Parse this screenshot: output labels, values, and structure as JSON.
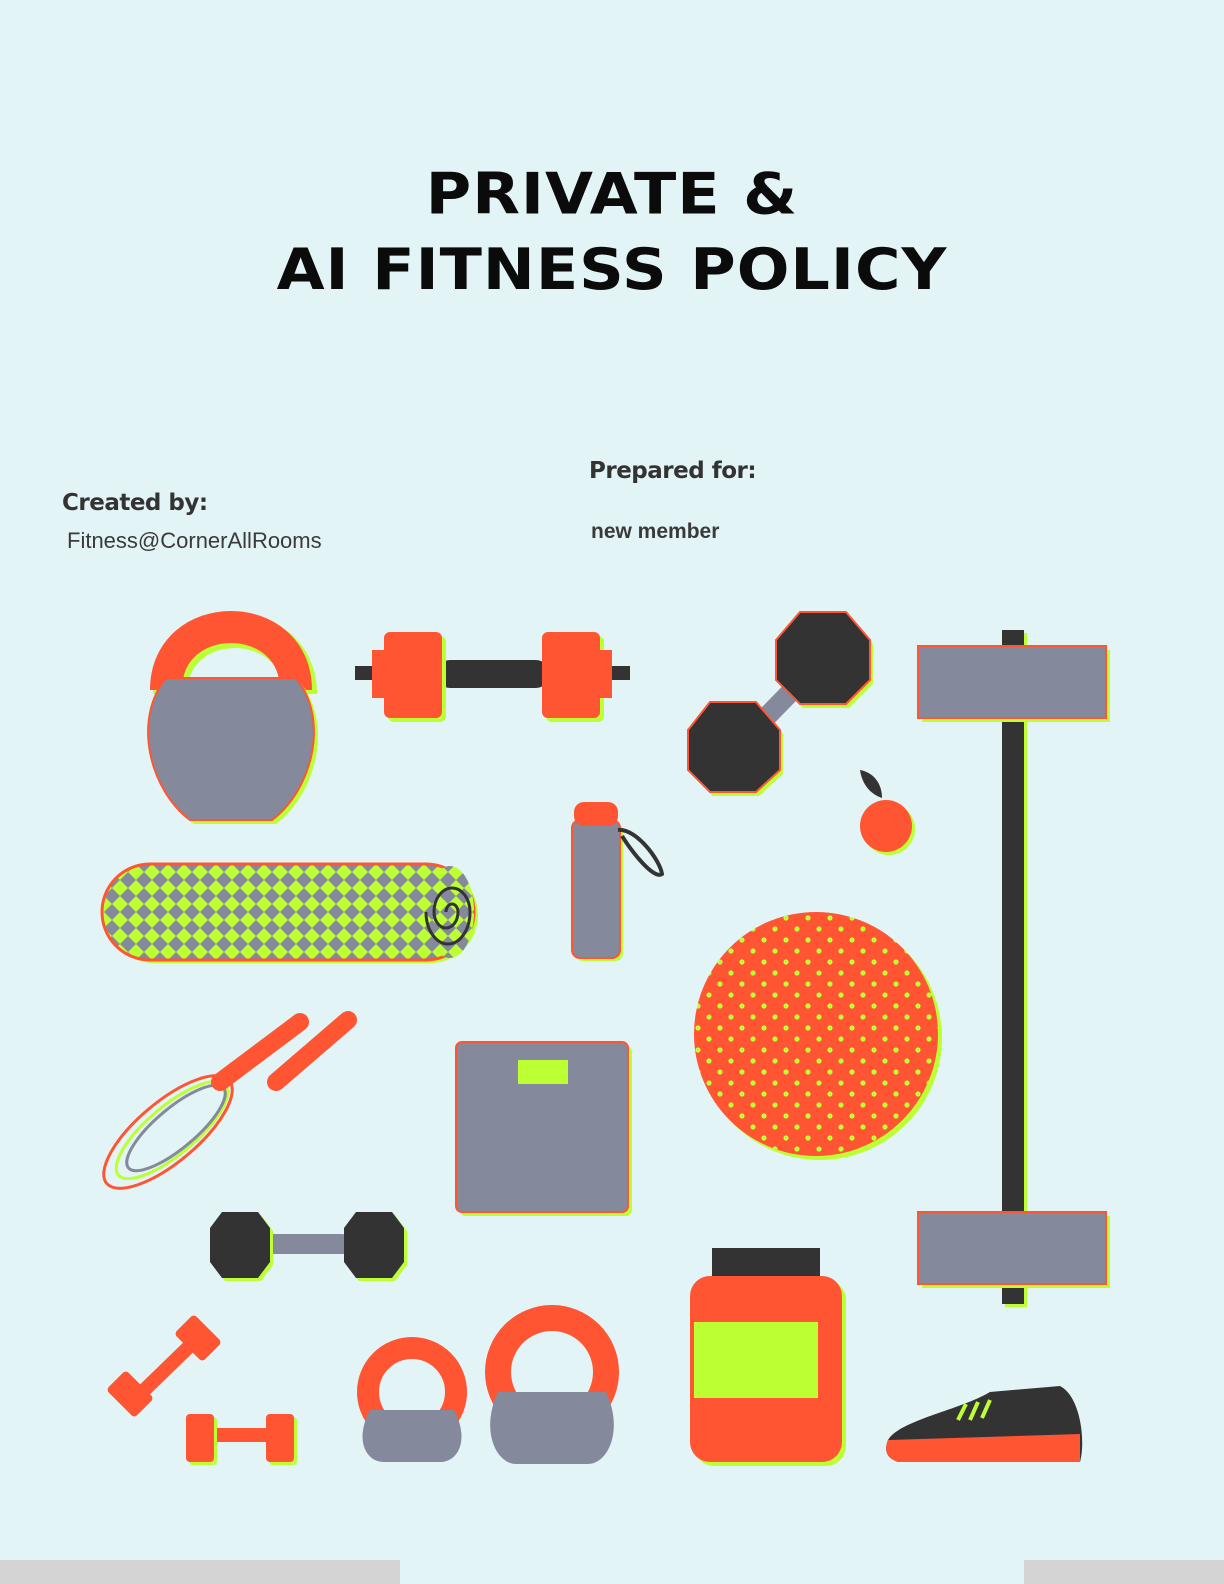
{
  "document": {
    "title_line1": "PRIVATE &",
    "title_line2": "AI FITNESS POLICY"
  },
  "meta": {
    "created_label": "Created by:",
    "created_value": "Fitness@CornerAllRooms",
    "prepared_label": "Prepared for:",
    "prepared_value": "new member"
  },
  "colors": {
    "background": "#e3f4f7",
    "orange": "#ff5533",
    "gray": "#848a9c",
    "dark": "#333333",
    "lime": "#bcff33"
  },
  "illustration": {
    "icons": [
      "kettlebell-icon",
      "barbell-icon",
      "dumbbell-icon",
      "apple-icon",
      "foam-roller-icon",
      "water-bottle-icon",
      "exercise-ball-icon",
      "jump-rope-icon",
      "scale-icon",
      "supplement-jar-icon",
      "sneaker-icon"
    ]
  }
}
